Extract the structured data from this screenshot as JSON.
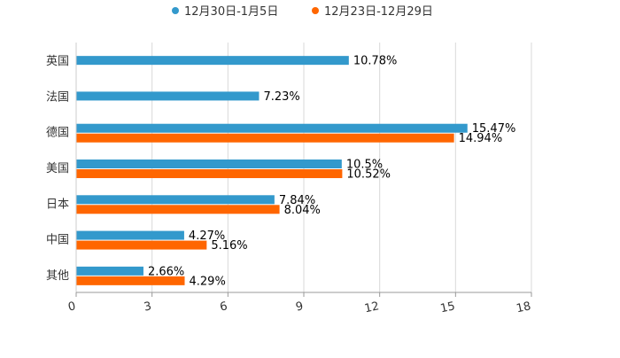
{
  "chart_data": {
    "type": "bar",
    "orientation": "horizontal",
    "categories": [
      "英国",
      "法国",
      "德国",
      "美国",
      "日本",
      "中国",
      "其他"
    ],
    "series": [
      {
        "name": "12月30日-1月5日",
        "color": "#3399cc",
        "values": [
          10.78,
          7.23,
          15.47,
          10.5,
          7.84,
          4.27,
          2.66
        ],
        "labels": [
          "10.78%",
          "7.23%",
          "15.47%",
          "10.5%",
          "7.84%",
          "4.27%",
          "2.66%"
        ]
      },
      {
        "name": "12月23日-12月29日",
        "color": "#ff6600",
        "values": [
          null,
          null,
          14.94,
          10.52,
          8.04,
          5.16,
          4.29
        ],
        "labels": [
          "",
          "",
          "14.94%",
          "10.52%",
          "8.04%",
          "5.16%",
          "4.29%"
        ]
      }
    ],
    "xlim": [
      0,
      18
    ],
    "xticks": [
      0,
      3,
      6,
      9,
      12,
      15,
      18
    ],
    "xtick_labels": [
      "0",
      "3",
      "6",
      "9",
      "12",
      "15",
      "18"
    ],
    "grid": true,
    "legend": "top-center",
    "title": "",
    "xlabel": "",
    "ylabel": ""
  }
}
